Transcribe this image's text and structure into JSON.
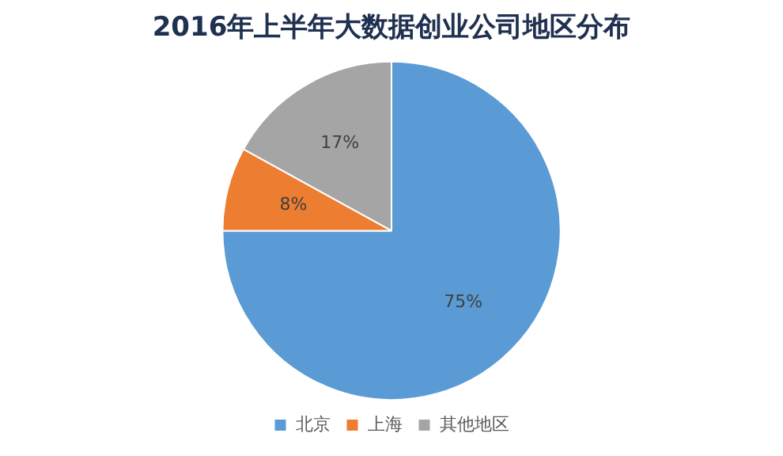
{
  "chart_data": {
    "type": "pie",
    "title": "2016年上半年大数据创业公司地区分布",
    "categories": [
      "北京",
      "上海",
      "其他地区"
    ],
    "values": [
      75,
      8,
      17
    ],
    "colors": [
      "#5b9bd5",
      "#ed7d31",
      "#a5a5a5"
    ],
    "value_labels": [
      "75%",
      "8%",
      "17%"
    ],
    "legend": "bottom"
  }
}
